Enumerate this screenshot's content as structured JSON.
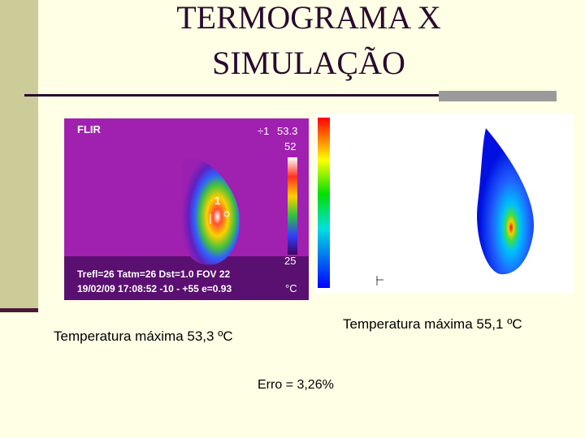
{
  "header": {
    "title_lines": [
      "TERMOGRAMA X",
      "SIMULAÇÃO"
    ]
  },
  "thermogram": {
    "brand": "FLIR",
    "spot_marker": "÷1",
    "spot_value": "53.3",
    "scale_max": "52",
    "scale_min": "25",
    "unit": "°C",
    "spot_label": "1",
    "info_line_1": "Trefl=26 Tatm=26 Dst=1.0 FOV 22",
    "info_line_2": "19/02/09 17:08:52  -10 - +55  e=0.93"
  },
  "captions": {
    "thermogram": "Temperatura máxima 53,3 ºC",
    "simulation": "Temperatura máxima  55,1 ºC",
    "error": "Erro = 3,26%"
  }
}
